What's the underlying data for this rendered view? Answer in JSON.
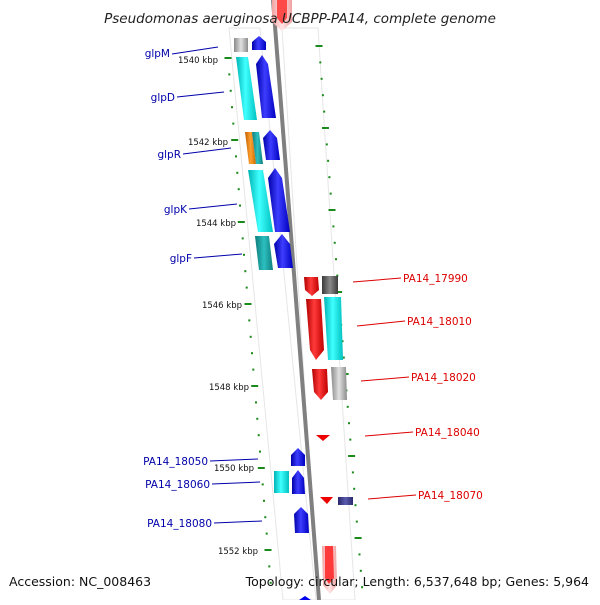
{
  "map": {
    "title": "Pseudomonas aeruginosa UCBPP-PA14, complete genome",
    "accession": "Accession: NC_008463",
    "topology": "Topology: circular; Length: 6,537,648 bp; Genes: 5,964"
  },
  "ticks": [
    "1540 kbp",
    "1542 kbp",
    "1544 kbp",
    "1546 kbp",
    "1548 kbp",
    "1550 kbp",
    "1552 kbp"
  ],
  "labels_left": [
    "glpM",
    "glpD",
    "glpR",
    "glpK",
    "glpF",
    "PA14_18050",
    "PA14_18060",
    "PA14_18080"
  ],
  "labels_right": [
    "PA14_17990",
    "PA14_18010",
    "PA14_18020",
    "PA14_18040",
    "PA14_18070"
  ],
  "colors": {
    "forward_strand": "#0000ee",
    "reverse_strand": "#ee0000",
    "cog_cyan": "#00e5e5",
    "cog_teal": "#17a3a3",
    "cog_orange": "#f08a00",
    "cog_gray": "#a6a6a6",
    "cog_dark": "#555555",
    "cog_purple": "#3c3c8c",
    "backbone": "#808080",
    "dots": "#1a8a1a",
    "left_label": "#0000aa",
    "right_label": "#dd0000"
  }
}
